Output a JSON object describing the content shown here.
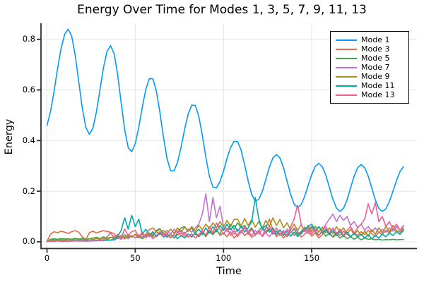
{
  "figure": {
    "title": "Energy Over Time for Modes 1, 3, 5, 7, 9, 11, 13",
    "xlabel": "Time",
    "ylabel": "Energy"
  },
  "axes": {
    "x_ticks": {
      "values": [
        0,
        50,
        100,
        150
      ],
      "labels": [
        "0",
        "50",
        "100",
        "150"
      ]
    },
    "y_ticks": {
      "values": [
        0.0,
        0.2,
        0.4,
        0.6,
        0.8
      ],
      "labels": [
        "0.0",
        "0.2",
        "0.4",
        "0.6",
        "0.8"
      ]
    },
    "grid": true,
    "spine_color": "#2f2f2f",
    "grid_color": "#e5e5e5"
  },
  "legend": {
    "position": "top-right",
    "border_color": "#000000",
    "background": "#ffffff"
  },
  "chart_data": {
    "type": "line",
    "title": "Energy Over Time for Modes 1, 3, 5, 7, 9, 11, 13",
    "xlabel": "Time",
    "ylabel": "Energy",
    "xlim": [
      -3.4,
      209.6
    ],
    "ylim": [
      -0.0265,
      0.8635
    ],
    "grid": true,
    "legend_position": "top-right",
    "x": [
      0,
      2,
      4,
      6,
      8,
      10,
      12,
      14,
      16,
      18,
      20,
      22,
      24,
      26,
      28,
      30,
      32,
      34,
      36,
      38,
      40,
      42,
      44,
      46,
      48,
      50,
      52,
      54,
      56,
      58,
      60,
      62,
      64,
      66,
      68,
      70,
      72,
      74,
      76,
      78,
      80,
      82,
      84,
      86,
      88,
      90,
      92,
      94,
      96,
      98,
      100,
      102,
      104,
      106,
      108,
      110,
      112,
      114,
      116,
      118,
      120,
      122,
      124,
      126,
      128,
      130,
      132,
      134,
      136,
      138,
      140,
      142,
      144,
      146,
      148,
      150,
      152,
      154,
      156,
      158,
      160,
      162,
      164,
      166,
      168,
      170,
      172,
      174,
      176,
      178,
      180,
      182,
      184,
      186,
      188,
      190,
      192,
      194,
      196,
      198,
      200,
      202
    ],
    "series": [
      {
        "name": "Mode 1",
        "color": "#009AFA",
        "values": [
          0.46,
          0.515,
          0.595,
          0.685,
          0.765,
          0.82,
          0.84,
          0.812,
          0.736,
          0.633,
          0.529,
          0.453,
          0.425,
          0.448,
          0.513,
          0.6,
          0.688,
          0.752,
          0.775,
          0.744,
          0.662,
          0.551,
          0.444,
          0.372,
          0.356,
          0.388,
          0.453,
          0.532,
          0.603,
          0.645,
          0.644,
          0.595,
          0.511,
          0.414,
          0.33,
          0.281,
          0.28,
          0.315,
          0.375,
          0.445,
          0.505,
          0.54,
          0.539,
          0.496,
          0.421,
          0.334,
          0.259,
          0.216,
          0.213,
          0.238,
          0.28,
          0.33,
          0.372,
          0.397,
          0.396,
          0.362,
          0.304,
          0.24,
          0.187,
          0.161,
          0.168,
          0.199,
          0.246,
          0.295,
          0.332,
          0.345,
          0.331,
          0.293,
          0.24,
          0.188,
          0.149,
          0.135,
          0.147,
          0.179,
          0.223,
          0.266,
          0.298,
          0.31,
          0.297,
          0.263,
          0.215,
          0.168,
          0.133,
          0.12,
          0.132,
          0.166,
          0.213,
          0.259,
          0.293,
          0.305,
          0.293,
          0.259,
          0.213,
          0.166,
          0.132,
          0.12,
          0.13,
          0.159,
          0.199,
          0.242,
          0.277,
          0.297
        ]
      },
      {
        "name": "Mode 3",
        "color": "#E26E46",
        "values": [
          0.002,
          0.03,
          0.04,
          0.036,
          0.042,
          0.038,
          0.033,
          0.04,
          0.044,
          0.038,
          0.02,
          0.008,
          0.036,
          0.042,
          0.035,
          0.04,
          0.044,
          0.041,
          0.038,
          0.032,
          0.015,
          0.025,
          0.012,
          0.022,
          0.018,
          0.028,
          0.015,
          0.022,
          0.03,
          0.048,
          0.055,
          0.04,
          0.05,
          0.035,
          0.02,
          0.03,
          0.015,
          0.028,
          0.035,
          0.022,
          0.03,
          0.018,
          0.035,
          0.025,
          0.04,
          0.02,
          0.045,
          0.03,
          0.05,
          0.025,
          0.035,
          0.02,
          0.04,
          0.015,
          0.03,
          0.045,
          0.025,
          0.035,
          0.018,
          0.028,
          0.04,
          0.022,
          0.055,
          0.09,
          0.045,
          0.02,
          0.035,
          0.015,
          0.03,
          0.045,
          0.025,
          0.038,
          0.018,
          0.03,
          0.042,
          0.022,
          0.035,
          0.015,
          0.028,
          0.045,
          0.03,
          0.02,
          0.038,
          0.025,
          0.042,
          0.03,
          0.018,
          0.035,
          0.025,
          0.04,
          0.028,
          0.045,
          0.032,
          0.022,
          0.038,
          0.028,
          0.045,
          0.035,
          0.05,
          0.04,
          0.03,
          0.045
        ]
      },
      {
        "name": "Mode 5",
        "color": "#3EA44E",
        "values": [
          0.001,
          0.01,
          0.012,
          0.01,
          0.013,
          0.011,
          0.012,
          0.01,
          0.014,
          0.011,
          0.013,
          0.01,
          0.012,
          0.015,
          0.018,
          0.012,
          0.02,
          0.014,
          0.018,
          0.012,
          0.022,
          0.015,
          0.028,
          0.018,
          0.025,
          0.015,
          0.022,
          0.012,
          0.025,
          0.035,
          0.02,
          0.045,
          0.052,
          0.03,
          0.018,
          0.028,
          0.015,
          0.035,
          0.055,
          0.06,
          0.04,
          0.055,
          0.03,
          0.02,
          0.035,
          0.022,
          0.04,
          0.028,
          0.045,
          0.03,
          0.06,
          0.04,
          0.07,
          0.05,
          0.075,
          0.055,
          0.065,
          0.04,
          0.055,
          0.03,
          0.045,
          0.06,
          0.035,
          0.05,
          0.03,
          0.042,
          0.025,
          0.04,
          0.02,
          0.035,
          0.05,
          0.028,
          0.04,
          0.058,
          0.045,
          0.06,
          0.038,
          0.025,
          0.04,
          0.022,
          0.035,
          0.018,
          0.03,
          0.015,
          0.025,
          0.012,
          0.02,
          0.01,
          0.018,
          0.008,
          0.015,
          0.01,
          0.012,
          0.008,
          0.01,
          0.007,
          0.009,
          0.008,
          0.01,
          0.008,
          0.009,
          0.01
        ]
      },
      {
        "name": "Mode 7",
        "color": "#C371D2",
        "values": [
          0.001,
          0.003,
          0.002,
          0.004,
          0.003,
          0.002,
          0.004,
          0.003,
          0.005,
          0.003,
          0.004,
          0.002,
          0.005,
          0.003,
          0.006,
          0.004,
          0.007,
          0.005,
          0.008,
          0.006,
          0.015,
          0.01,
          0.02,
          0.012,
          0.025,
          0.015,
          0.028,
          0.018,
          0.03,
          0.02,
          0.035,
          0.022,
          0.04,
          0.028,
          0.045,
          0.03,
          0.05,
          0.035,
          0.045,
          0.03,
          0.05,
          0.038,
          0.055,
          0.07,
          0.11,
          0.19,
          0.08,
          0.175,
          0.095,
          0.14,
          0.06,
          0.04,
          0.055,
          0.03,
          0.05,
          0.035,
          0.055,
          0.04,
          0.025,
          0.045,
          0.03,
          0.05,
          0.035,
          0.02,
          0.04,
          0.028,
          0.045,
          0.03,
          0.05,
          0.035,
          0.055,
          0.04,
          0.03,
          0.048,
          0.032,
          0.055,
          0.04,
          0.06,
          0.045,
          0.07,
          0.09,
          0.11,
          0.08,
          0.105,
          0.085,
          0.1,
          0.065,
          0.08,
          0.055,
          0.07,
          0.045,
          0.06,
          0.04,
          0.055,
          0.035,
          0.05,
          0.038,
          0.055,
          0.042,
          0.06,
          0.045,
          0.055
        ]
      },
      {
        "name": "Mode 9",
        "color": "#AC8E18",
        "values": [
          0.001,
          0.005,
          0.008,
          0.006,
          0.009,
          0.007,
          0.01,
          0.008,
          0.011,
          0.008,
          0.01,
          0.007,
          0.012,
          0.009,
          0.013,
          0.01,
          0.015,
          0.011,
          0.016,
          0.02,
          0.014,
          0.025,
          0.016,
          0.028,
          0.018,
          0.03,
          0.02,
          0.032,
          0.022,
          0.035,
          0.025,
          0.04,
          0.028,
          0.045,
          0.032,
          0.05,
          0.035,
          0.055,
          0.038,
          0.058,
          0.04,
          0.06,
          0.042,
          0.065,
          0.048,
          0.07,
          0.052,
          0.075,
          0.055,
          0.08,
          0.058,
          0.085,
          0.06,
          0.088,
          0.09,
          0.062,
          0.092,
          0.065,
          0.088,
          0.058,
          0.08,
          0.052,
          0.085,
          0.06,
          0.095,
          0.065,
          0.088,
          0.055,
          0.075,
          0.048,
          0.07,
          0.045,
          0.068,
          0.042,
          0.065,
          0.04,
          0.062,
          0.038,
          0.058,
          0.035,
          0.055,
          0.032,
          0.06,
          0.038,
          0.055,
          0.03,
          0.05,
          0.028,
          0.045,
          0.025,
          0.042,
          0.022,
          0.048,
          0.03,
          0.055,
          0.035,
          0.06,
          0.04,
          0.065,
          0.045,
          0.038,
          0.05
        ]
      },
      {
        "name": "Mode 11",
        "color": "#02AAAE",
        "values": [
          0.001,
          0.004,
          0.003,
          0.005,
          0.003,
          0.004,
          0.003,
          0.005,
          0.004,
          0.006,
          0.004,
          0.005,
          0.004,
          0.006,
          0.005,
          0.007,
          0.005,
          0.008,
          0.006,
          0.01,
          0.02,
          0.045,
          0.095,
          0.05,
          0.105,
          0.06,
          0.09,
          0.03,
          0.05,
          0.025,
          0.04,
          0.02,
          0.035,
          0.018,
          0.03,
          0.015,
          0.028,
          0.012,
          0.025,
          0.015,
          0.03,
          0.02,
          0.035,
          0.05,
          0.03,
          0.055,
          0.035,
          0.06,
          0.04,
          0.065,
          0.045,
          0.07,
          0.048,
          0.065,
          0.042,
          0.06,
          0.038,
          0.055,
          0.08,
          0.175,
          0.09,
          0.05,
          0.065,
          0.038,
          0.055,
          0.03,
          0.048,
          0.025,
          0.042,
          0.022,
          0.038,
          0.02,
          0.035,
          0.05,
          0.06,
          0.07,
          0.045,
          0.06,
          0.035,
          0.05,
          0.028,
          0.045,
          0.025,
          0.04,
          0.022,
          0.038,
          0.02,
          0.035,
          0.018,
          0.03,
          0.015,
          0.028,
          0.012,
          0.025,
          0.015,
          0.03,
          0.02,
          0.035,
          0.025,
          0.04,
          0.03,
          0.045
        ]
      },
      {
        "name": "Mode 13",
        "color": "#ED5E93",
        "values": [
          0.001,
          0.003,
          0.002,
          0.004,
          0.002,
          0.003,
          0.002,
          0.004,
          0.003,
          0.005,
          0.003,
          0.004,
          0.003,
          0.005,
          0.004,
          0.006,
          0.008,
          0.02,
          0.035,
          0.018,
          0.03,
          0.015,
          0.05,
          0.025,
          0.04,
          0.045,
          0.02,
          0.038,
          0.015,
          0.03,
          0.012,
          0.025,
          0.04,
          0.02,
          0.035,
          0.015,
          0.03,
          0.045,
          0.022,
          0.038,
          0.018,
          0.032,
          0.015,
          0.028,
          0.045,
          0.025,
          0.06,
          0.035,
          0.075,
          0.05,
          0.03,
          0.055,
          0.025,
          0.045,
          0.02,
          0.04,
          0.06,
          0.03,
          0.05,
          0.025,
          0.045,
          0.02,
          0.04,
          0.06,
          0.035,
          0.055,
          0.025,
          0.045,
          0.02,
          0.06,
          0.09,
          0.145,
          0.07,
          0.04,
          0.055,
          0.03,
          0.05,
          0.025,
          0.045,
          0.06,
          0.035,
          0.055,
          0.03,
          0.05,
          0.025,
          0.045,
          0.06,
          0.035,
          0.055,
          0.07,
          0.09,
          0.15,
          0.11,
          0.155,
          0.08,
          0.1,
          0.06,
          0.08,
          0.05,
          0.07,
          0.045,
          0.065
        ]
      }
    ]
  }
}
